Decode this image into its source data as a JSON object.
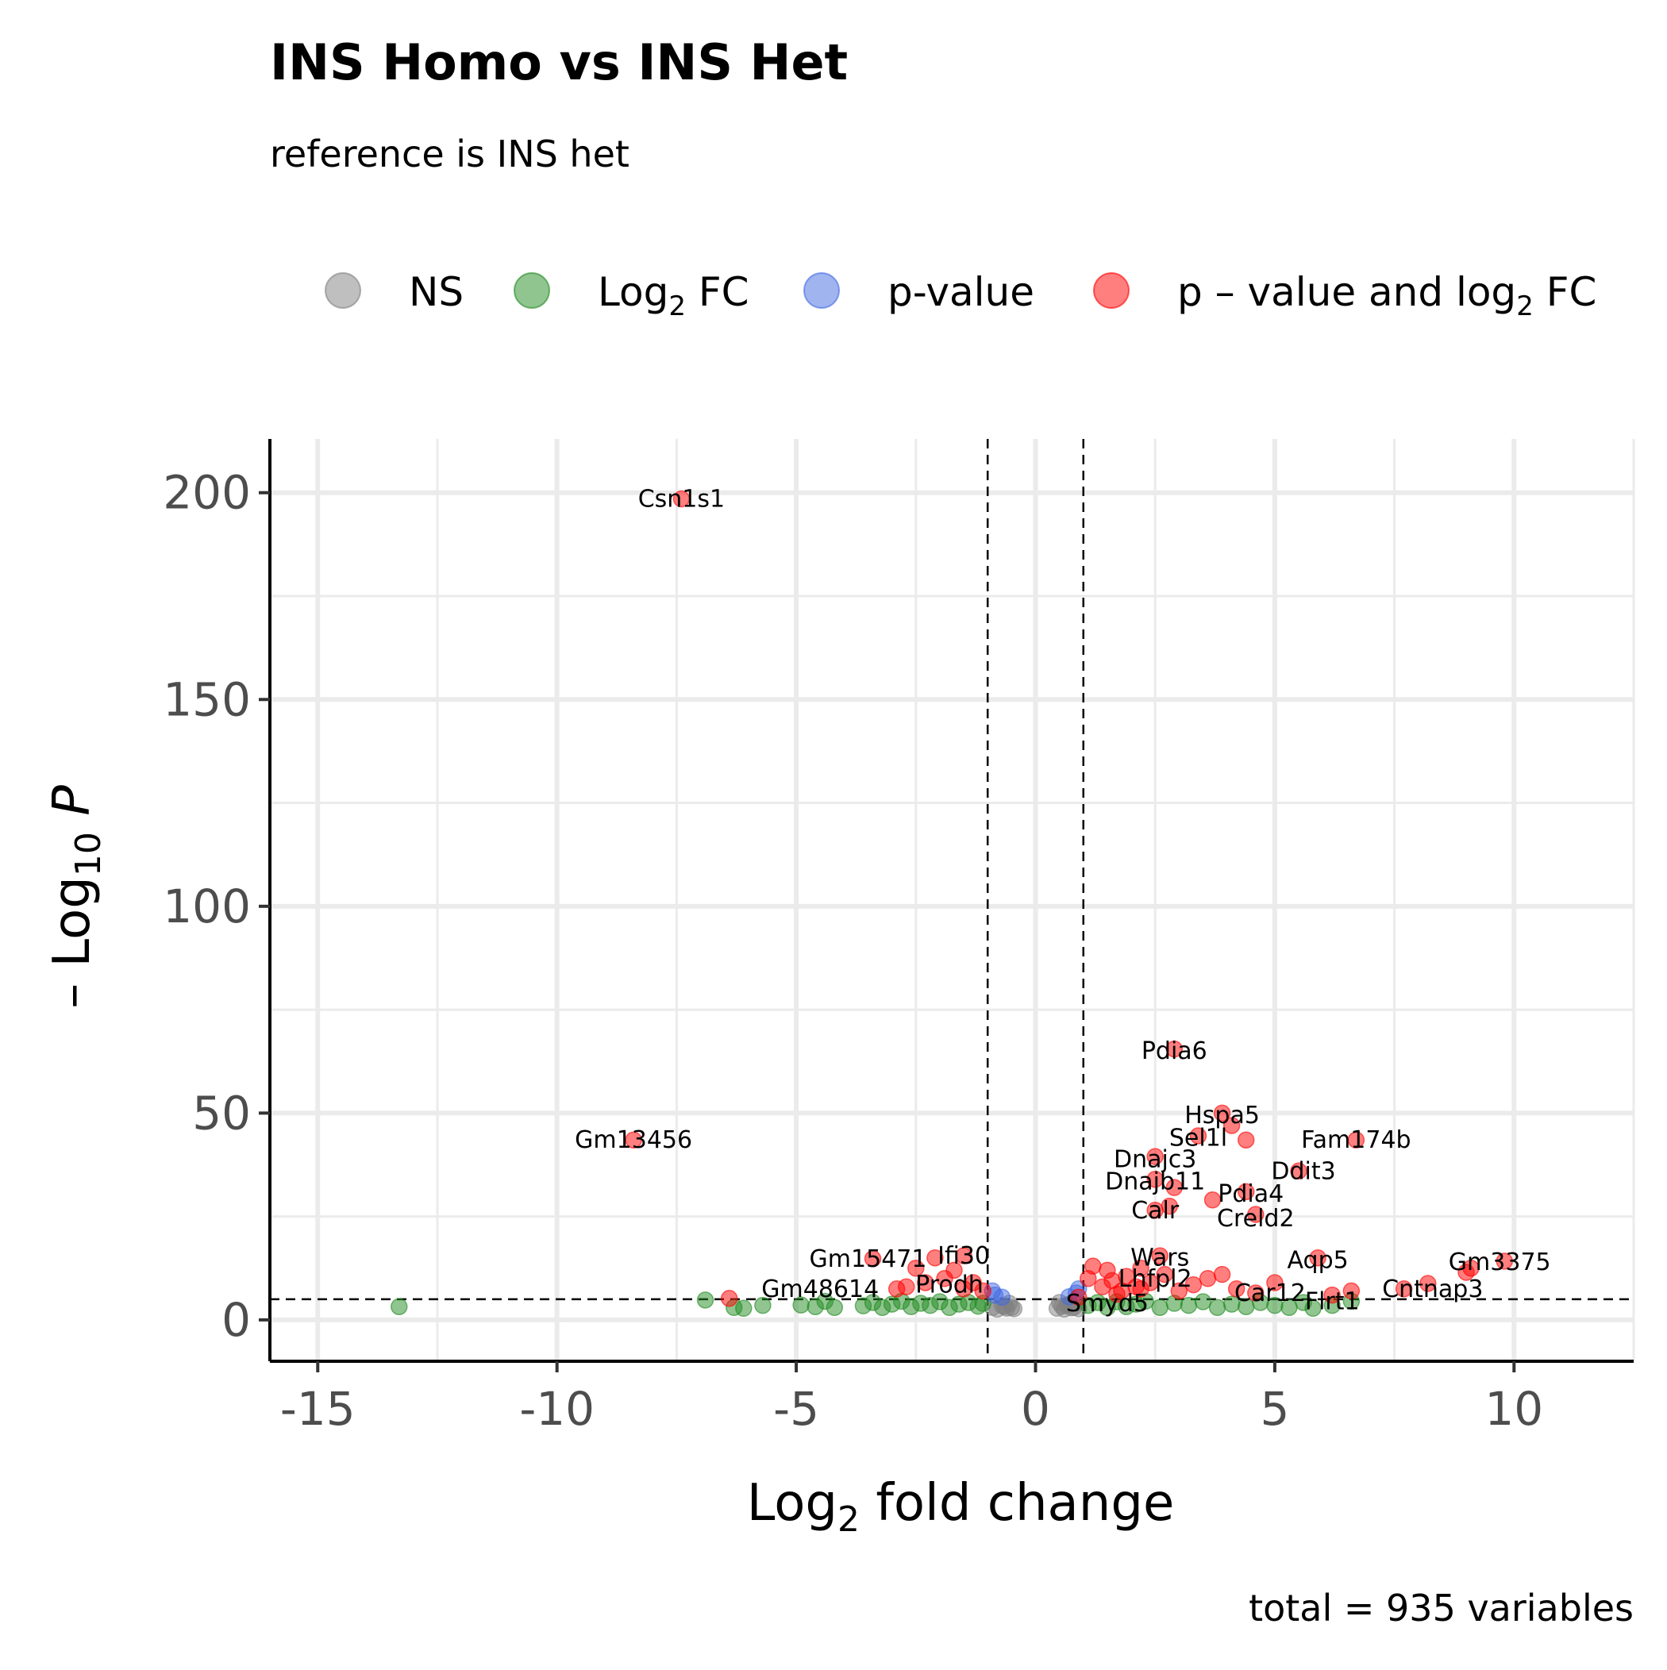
{
  "chart_data": {
    "type": "scatter",
    "title": "INS Homo vs INS Het",
    "subtitle": "reference is INS het",
    "caption": "total = 935 variables",
    "xlabel": "Log2 fold change",
    "ylabel": "-Log10 P",
    "xlim": [
      -16,
      12.5
    ],
    "ylim": [
      -10,
      213
    ],
    "x_ticks": [
      "-15",
      "-10",
      "-5",
      "0",
      "5",
      "10"
    ],
    "x_tick_values": [
      -15,
      -10,
      -5,
      0,
      5,
      10
    ],
    "y_ticks": [
      "0",
      "50",
      "100",
      "150",
      "200"
    ],
    "y_tick_values": [
      0,
      50,
      100,
      150,
      200
    ],
    "grid": true,
    "legend_position": "top",
    "fc_cutoff": [
      -1,
      1
    ],
    "p_cutoff": 5,
    "legend": [
      {
        "key": "NS",
        "label": "NS",
        "color": "#808080"
      },
      {
        "key": "FC",
        "label": "Log",
        "sub": "2",
        "suffix": " FC",
        "color": "#228b22"
      },
      {
        "key": "P",
        "label": "p-value",
        "color": "#4169e1"
      },
      {
        "key": "P_FC",
        "label": "p – value and log",
        "sub": "2",
        "suffix": " FC",
        "color": "#ff0000"
      }
    ],
    "series": [
      {
        "name": "NS",
        "color": "#808080",
        "points": [
          [
            -0.5,
            3
          ],
          [
            -0.6,
            2.8
          ],
          [
            -0.7,
            3.5
          ],
          [
            -0.8,
            2.6
          ],
          [
            -0.55,
            4
          ],
          [
            -0.65,
            3.2
          ],
          [
            -0.9,
            3
          ],
          [
            -0.45,
            2.7
          ],
          [
            0.45,
            2.8
          ],
          [
            0.55,
            3.3
          ],
          [
            0.6,
            2.6
          ],
          [
            0.7,
            3.8
          ],
          [
            0.8,
            3
          ],
          [
            0.9,
            2.7
          ],
          [
            0.5,
            4.2
          ],
          [
            0.65,
            3.5
          ],
          [
            0.75,
            2.9
          ],
          [
            0.85,
            4
          ]
        ]
      },
      {
        "name": "Log2 FC",
        "color": "#228b22",
        "points": [
          [
            -13.3,
            3.2
          ],
          [
            -6.9,
            4.8
          ],
          [
            -6.3,
            3
          ],
          [
            -6.1,
            2.8
          ],
          [
            -5.7,
            3.5
          ],
          [
            -4.9,
            3.6
          ],
          [
            -4.6,
            3.2
          ],
          [
            -4.4,
            4.5
          ],
          [
            -4.2,
            3
          ],
          [
            -3.6,
            3.4
          ],
          [
            -3.4,
            4.2
          ],
          [
            -3.2,
            3
          ],
          [
            -3,
            3.8
          ],
          [
            -2.8,
            4.5
          ],
          [
            -2.6,
            3.2
          ],
          [
            -2.4,
            4
          ],
          [
            -2.2,
            3.5
          ],
          [
            -2,
            4.4
          ],
          [
            -1.8,
            3
          ],
          [
            -1.6,
            3.8
          ],
          [
            -1.4,
            4.2
          ],
          [
            -1.2,
            3.3
          ],
          [
            -1.1,
            4
          ],
          [
            1.1,
            3.5
          ],
          [
            1.3,
            4.2
          ],
          [
            1.5,
            3
          ],
          [
            1.7,
            4.4
          ],
          [
            1.9,
            3.2
          ],
          [
            2.1,
            3.8
          ],
          [
            2.3,
            4.5
          ],
          [
            2.6,
            3
          ],
          [
            2.9,
            4
          ],
          [
            3.2,
            3.5
          ],
          [
            3.5,
            4.4
          ],
          [
            3.8,
            3
          ],
          [
            4.1,
            3.8
          ],
          [
            4.4,
            3.2
          ],
          [
            4.7,
            4.2
          ],
          [
            5,
            3.5
          ],
          [
            5.3,
            3
          ],
          [
            5.6,
            4.2
          ],
          [
            5.8,
            2.8
          ],
          [
            6.2,
            3.5
          ],
          [
            6.6,
            4.5
          ]
        ]
      },
      {
        "name": "p-value",
        "color": "#4169e1",
        "points": [
          [
            -0.85,
            6
          ],
          [
            -0.7,
            5.5
          ],
          [
            -0.9,
            7
          ],
          [
            0.85,
            6.5
          ],
          [
            0.7,
            5.6
          ],
          [
            0.9,
            7.5
          ]
        ]
      },
      {
        "name": "p – value and log2 FC",
        "color": "#ff0000",
        "points": [
          [
            -7.4,
            198.5
          ],
          [
            -8.4,
            43.5
          ],
          [
            -6.4,
            5.2
          ],
          [
            -3.4,
            14.8
          ],
          [
            -2.9,
            7.5
          ],
          [
            -2.7,
            8
          ],
          [
            -2.5,
            12.5
          ],
          [
            -2.3,
            9
          ],
          [
            -2.1,
            15
          ],
          [
            -1.9,
            10
          ],
          [
            -1.7,
            12
          ],
          [
            -1.5,
            7.5
          ],
          [
            -1.3,
            9
          ],
          [
            -1.1,
            7
          ],
          [
            -1.5,
            15.5
          ],
          [
            1.1,
            10
          ],
          [
            1.2,
            13
          ],
          [
            1.4,
            8
          ],
          [
            1.5,
            12
          ],
          [
            1.6,
            9.5
          ],
          [
            1.8,
            7
          ],
          [
            1.9,
            10.5
          ],
          [
            2.1,
            8
          ],
          [
            2.2,
            12.5
          ],
          [
            2.4,
            9
          ],
          [
            2.7,
            11
          ],
          [
            3,
            7
          ],
          [
            3.3,
            8.5
          ],
          [
            3.6,
            10
          ],
          [
            3.9,
            11
          ],
          [
            4.2,
            7.5
          ],
          [
            4.6,
            6.5
          ],
          [
            5,
            9
          ],
          [
            5.9,
            15
          ],
          [
            6.2,
            6
          ],
          [
            6.6,
            7
          ],
          [
            7.7,
            7.5
          ],
          [
            8.2,
            8.8
          ],
          [
            9,
            11.5
          ],
          [
            9.1,
            12.5
          ],
          [
            9.8,
            14.2
          ],
          [
            6.7,
            43.5
          ],
          [
            5.5,
            36
          ],
          [
            4.4,
            43.5
          ],
          [
            4.1,
            47
          ],
          [
            3.9,
            50
          ],
          [
            3.4,
            44.5
          ],
          [
            2.5,
            39.5
          ],
          [
            2.5,
            34
          ],
          [
            2.9,
            32
          ],
          [
            4.4,
            31
          ],
          [
            3.7,
            29
          ],
          [
            4.6,
            25.5
          ],
          [
            2.8,
            27.5
          ],
          [
            2.5,
            26.5
          ],
          [
            2.6,
            15.5
          ],
          [
            2.9,
            65.5
          ],
          [
            2.2,
            7.5
          ],
          [
            1.7,
            6.2
          ],
          [
            0.9,
            5.5
          ]
        ]
      }
    ],
    "labels": [
      {
        "text": "Csn1s1",
        "x": -7.4,
        "y": 198.5
      },
      {
        "text": "Gm13456",
        "x": -8.4,
        "y": 43.5
      },
      {
        "text": "Pdia6",
        "x": 2.9,
        "y": 65
      },
      {
        "text": "Hspa5",
        "x": 3.9,
        "y": 49.5
      },
      {
        "text": "Sel1l",
        "x": 3.4,
        "y": 44
      },
      {
        "text": "Fam174b",
        "x": 6.7,
        "y": 43.5
      },
      {
        "text": "Dnajc3",
        "x": 2.5,
        "y": 38.8
      },
      {
        "text": "Ddit3",
        "x": 5.6,
        "y": 36
      },
      {
        "text": "Dnajb11",
        "x": 2.5,
        "y": 33.5
      },
      {
        "text": "Pdia4",
        "x": 4.5,
        "y": 30.5
      },
      {
        "text": "Calr",
        "x": 2.5,
        "y": 26.5
      },
      {
        "text": "Creld2",
        "x": 4.6,
        "y": 24.5
      },
      {
        "text": "Gm15471",
        "x": -3.5,
        "y": 14.8
      },
      {
        "text": "Ifi30",
        "x": -1.5,
        "y": 15.5
      },
      {
        "text": "Wars",
        "x": 2.6,
        "y": 15
      },
      {
        "text": "Aqp5",
        "x": 5.9,
        "y": 14.5
      },
      {
        "text": "Gm3375",
        "x": 9.7,
        "y": 14
      },
      {
        "text": "Gm48614",
        "x": -4.5,
        "y": 7.5
      },
      {
        "text": "Prodh",
        "x": -1.8,
        "y": 8.5
      },
      {
        "text": "Lhfpl2",
        "x": 2.5,
        "y": 10
      },
      {
        "text": "Cntnap3",
        "x": 8.3,
        "y": 7.5
      },
      {
        "text": "Car12",
        "x": 4.9,
        "y": 6.5
      },
      {
        "text": "Smyd5",
        "x": 1.5,
        "y": 4
      },
      {
        "text": "Flrt1",
        "x": 6.2,
        "y": 4.5
      }
    ]
  }
}
